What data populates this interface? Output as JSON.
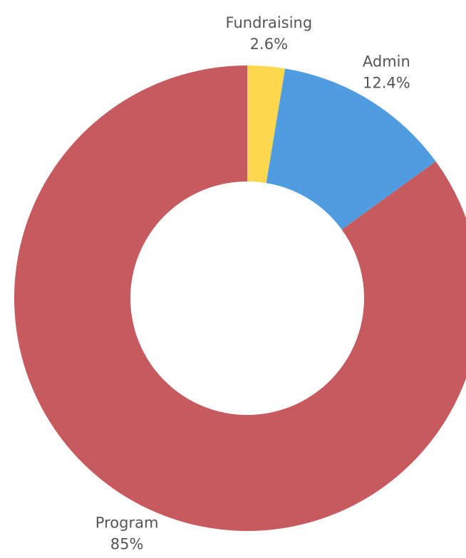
{
  "chart_data": {
    "type": "donut",
    "categories": [
      "Fundraising",
      "Admin",
      "Program"
    ],
    "values": [
      2.6,
      12.4,
      85
    ],
    "value_labels": [
      "2.6%",
      "12.4%",
      "85%"
    ],
    "colors": [
      "#fdd74e",
      "#4f9de0",
      "#c75a5e"
    ]
  }
}
